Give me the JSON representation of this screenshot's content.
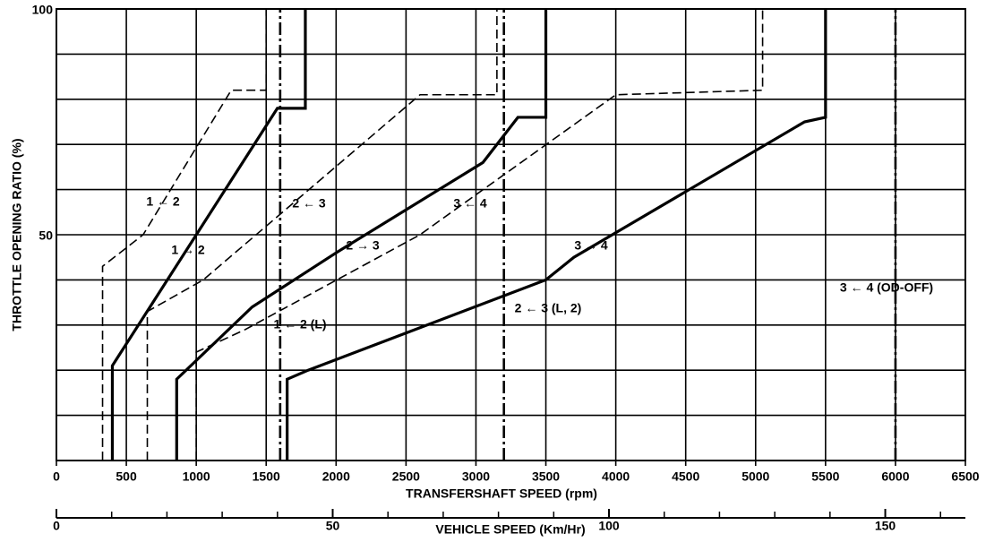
{
  "chart_data": {
    "type": "line",
    "ylabel": "THROTTLE OPENING RATIO  (%)",
    "xlabel": "TRANSFERSHAFT SPEED (rpm)",
    "x2label": "VEHICLE SPEED (Km/Hr)",
    "xlim": [
      0,
      6500
    ],
    "xticks": [
      0,
      500,
      1000,
      1500,
      2000,
      2500,
      3000,
      3500,
      4000,
      4500,
      5000,
      5500,
      6000,
      6500
    ],
    "ylim": [
      0,
      100
    ],
    "yticks": [
      50,
      100
    ],
    "ygrid": [
      10,
      20,
      30,
      40,
      60,
      70,
      80,
      90
    ],
    "x2lim": [
      0,
      164.5
    ],
    "x2ticks": [
      0,
      50,
      100,
      150
    ],
    "x2minor": [
      10,
      20,
      30,
      40,
      60,
      70,
      80,
      90,
      110,
      120,
      130,
      140,
      160
    ],
    "grid": true,
    "series": [
      {
        "name": "1 ← 2",
        "color": "#000000",
        "style": "dashed",
        "x": [
          330,
          330,
          620,
          1250,
          1500,
          1500
        ],
        "y": [
          0,
          43,
          50,
          82,
          82,
          100
        ]
      },
      {
        "name": "1 → 2",
        "color": "#000000",
        "style": "solid",
        "x": [
          400,
          400,
          1580,
          1780,
          1780
        ],
        "y": [
          0,
          21,
          78,
          78,
          100
        ]
      },
      {
        "name": "2 ← 3",
        "color": "#000000",
        "style": "dashed",
        "x": [
          650,
          650,
          1050,
          2600,
          3150,
          3150
        ],
        "y": [
          0,
          33,
          40,
          81,
          81,
          100
        ]
      },
      {
        "name": "2 → 3",
        "color": "#000000",
        "style": "solid",
        "x": [
          860,
          860,
          1400,
          2000,
          3050,
          3300,
          3500,
          3500
        ],
        "y": [
          0,
          18,
          34,
          46,
          66,
          76,
          76,
          100
        ]
      },
      {
        "name": "3 ← 4",
        "color": "#000000",
        "style": "dashed",
        "x": [
          1000,
          1000,
          1350,
          2600,
          4000,
          5050,
          5050
        ],
        "y": [
          0,
          24,
          29,
          50,
          81,
          82,
          100
        ]
      },
      {
        "name": "3 → 4",
        "color": "#000000",
        "style": "solid",
        "x": [
          1650,
          1650,
          1800,
          3500,
          3700,
          5350,
          5500,
          5500
        ],
        "y": [
          0,
          18,
          20,
          40,
          45,
          75,
          76,
          100
        ]
      },
      {
        "name": "1 ← 2 (L)",
        "color": "#000000",
        "style": "dashdot",
        "x": [
          1600,
          1600
        ],
        "y": [
          0,
          100
        ]
      },
      {
        "name": "2 ← 3 (L, 2)",
        "color": "#000000",
        "style": "dashdot",
        "x": [
          3200,
          3200
        ],
        "y": [
          0,
          100
        ]
      },
      {
        "name": "3 ← 4 (OD-OFF)",
        "color": "#000000",
        "style": "dashdot",
        "x": [
          6000,
          6000
        ],
        "y": [
          0,
          100
        ]
      }
    ]
  }
}
